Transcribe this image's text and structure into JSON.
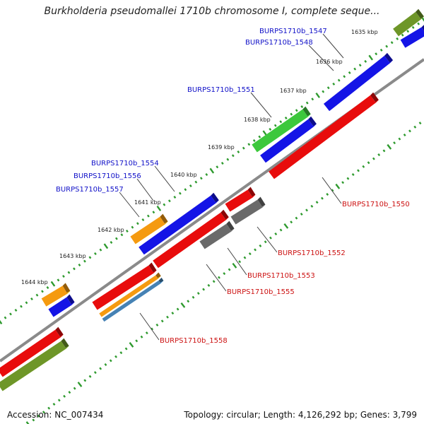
{
  "title": "Burkholderia pseudomallei 1710b chromosome I, complete seque...",
  "footer": {
    "accession": "Accession: NC_007434",
    "summary": "Topology: circular; Length: 4,126,292 bp; Genes: 3,799"
  },
  "colors": {
    "tick": "#2e9a2e",
    "backbone": "#8a8a8a",
    "forward_label": "#1010c8",
    "reverse_label": "#cc1010",
    "leader": "#444444",
    "blue": "#1414e6",
    "red": "#e80c0c",
    "green": "#3cc83c",
    "olive": "#6e9628",
    "orange": "#f59a10",
    "gray": "#6a6a6a",
    "steelblue": "#4682b4"
  },
  "ticks": [
    "1635 kbp",
    "1636 kbp",
    "1637 kbp",
    "1638 kbp",
    "1639 kbp",
    "1640 kbp",
    "1641 kbp",
    "1642 kbp",
    "1643 kbp",
    "1644 kbp"
  ],
  "labels": {
    "forward": [
      "BURPS1710b_1547",
      "BURPS1710b_1548",
      "BURPS1710b_1551",
      "BURPS1710b_1554",
      "BURPS1710b_1556",
      "BURPS1710b_1557"
    ],
    "reverse": [
      "BURPS1710b_1550",
      "BURPS1710b_1552",
      "BURPS1710b_1553",
      "BURPS1710b_1555",
      "BURPS1710b_1558"
    ]
  }
}
